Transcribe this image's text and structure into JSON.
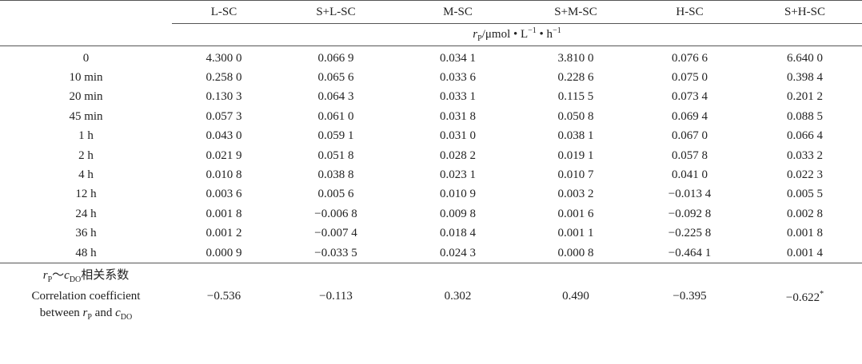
{
  "table": {
    "header": [
      "L-SC",
      "S+L-SC",
      "M-SC",
      "S+M-SC",
      "H-SC",
      "S+H-SC"
    ],
    "unit": [
      "r",
      "P",
      "/μmol • L",
      "−1",
      " • h",
      "−1"
    ],
    "rows": [
      [
        "0",
        "4.300 0",
        "0.066 9",
        "0.034 1",
        "3.810 0",
        "0.076 6",
        "6.640 0"
      ],
      [
        "10 min",
        "0.258 0",
        "0.065 6",
        "0.033 6",
        "0.228 6",
        "0.075 0",
        "0.398 4"
      ],
      [
        "20 min",
        "0.130 3",
        "0.064 3",
        "0.033 1",
        "0.115 5",
        "0.073 4",
        "0.201 2"
      ],
      [
        "45 min",
        "0.057 3",
        "0.061 0",
        "0.031 8",
        "0.050 8",
        "0.069 4",
        "0.088 5"
      ],
      [
        "1 h",
        "0.043 0",
        "0.059 1",
        "0.031 0",
        "0.038 1",
        "0.067 0",
        "0.066 4"
      ],
      [
        "2 h",
        "0.021 9",
        "0.051 8",
        "0.028 2",
        "0.019 1",
        "0.057 8",
        "0.033 2"
      ],
      [
        "4 h",
        "0.010 8",
        "0.038 8",
        "0.023 1",
        "0.010 7",
        "0.041 0",
        "0.022 3"
      ],
      [
        "12 h",
        "0.003 6",
        "0.005 6",
        "0.010 9",
        "0.003 2",
        "−0.013 4",
        "0.005 5"
      ],
      [
        "24 h",
        "0.001 8",
        "−0.006 8",
        "0.009 8",
        "0.001 6",
        "−0.092 8",
        "0.002 8"
      ],
      [
        "36 h",
        "0.001 2",
        "−0.007 4",
        "0.018 4",
        "0.001 1",
        "−0.225 8",
        "0.001 8"
      ],
      [
        "48 h",
        "0.000 9",
        "−0.033 5",
        "0.024 3",
        "0.000 8",
        "−0.464 1",
        "0.001 4"
      ]
    ],
    "correlation": {
      "label": [
        [
          "r",
          "P",
          "～",
          "c",
          "DO",
          "相关系数"
        ],
        "Correlation coefficient",
        [
          "between ",
          "r",
          "P",
          " and ",
          "c",
          "DO"
        ]
      ],
      "values": [
        "−0.536",
        "−0.113",
        "0.302",
        "0.490",
        "−0.395",
        {
          "value": "−0.622",
          "sup": "*"
        }
      ]
    }
  }
}
